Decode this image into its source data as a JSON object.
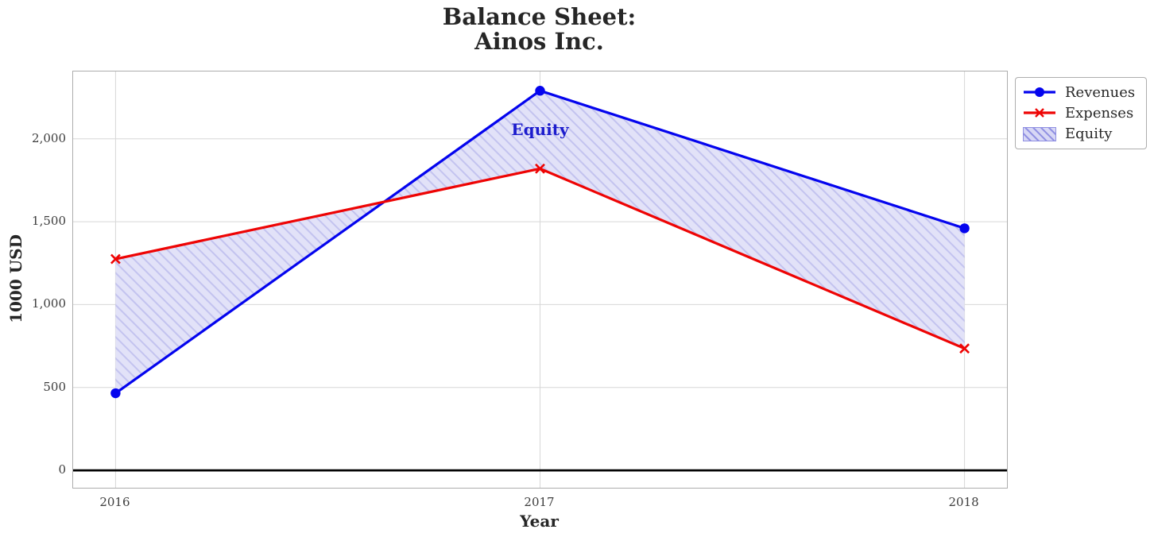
{
  "chart_data": {
    "type": "line",
    "title": "Balance Sheet:\nAinos Inc.",
    "xlabel": "Year",
    "ylabel": "1000 USD",
    "x": [
      2016,
      2017,
      2018
    ],
    "series": [
      {
        "name": "Revenues",
        "values": [
          465,
          2290,
          1460
        ],
        "color": "#0404ee",
        "marker": "circle"
      },
      {
        "name": "Expenses",
        "values": [
          1275,
          1820,
          735
        ],
        "color": "#ee0404",
        "marker": "x"
      }
    ],
    "fill_between": {
      "label": "Equity",
      "between": [
        "Revenues",
        "Expenses"
      ],
      "hatch": "//",
      "facecolor": "#e2e2f8",
      "hatchcolor": "#c3c3ef",
      "legend_facecolor": "#d7d7f5",
      "legend_hatchcolor": "#8f8fe2"
    },
    "annotation": {
      "text": "Equity",
      "x": 2017,
      "y": 2055,
      "color": "#1c1ccd"
    },
    "xlim": [
      2015.9,
      2018.1
    ],
    "ylim": [
      -105,
      2406
    ],
    "yticks": [
      {
        "v": 0,
        "label": "0"
      },
      {
        "v": 500,
        "label": "500"
      },
      {
        "v": 1000,
        "label": "1,000"
      },
      {
        "v": 1500,
        "label": "1,500"
      },
      {
        "v": 2000,
        "label": "2,000"
      }
    ],
    "xticks": [
      {
        "v": 2016,
        "label": "2016"
      },
      {
        "v": 2017,
        "label": "2017"
      },
      {
        "v": 2018,
        "label": "2018"
      }
    ],
    "grid": true,
    "zero_line": true,
    "legend_position": "outside-upper-right",
    "colors": {
      "grid": "#d7d7d7",
      "spine": "#adadad",
      "zero_line": "#000000",
      "tick_label": "#3d3d3d",
      "text": "#262626",
      "background": "#ffffff"
    }
  }
}
